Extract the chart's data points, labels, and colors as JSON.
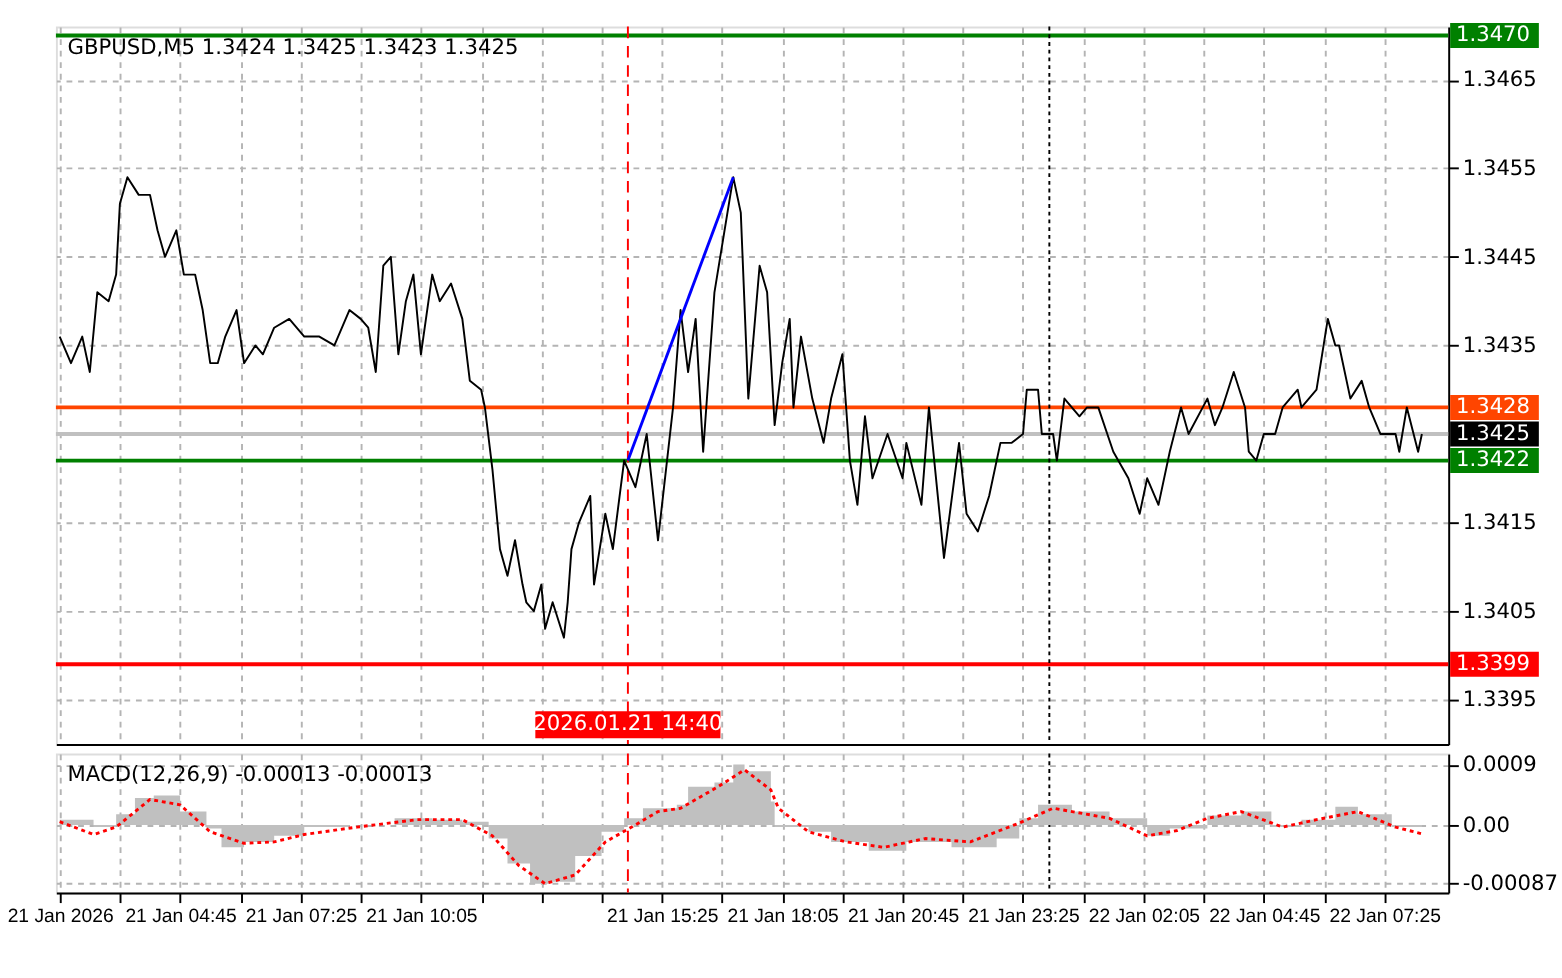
{
  "chart_data": [
    {
      "type": "line",
      "title": "GBPUSD,M5  1.3424 1.3425 1.3423 1.3425",
      "xlim": [
        "2026-01-21T02:00",
        "2026-01-22T08:50"
      ],
      "ylim": [
        1.339,
        1.3471
      ],
      "yticks": [
        1.3395,
        1.3405,
        1.3415,
        1.3435,
        1.3445,
        1.3455,
        1.3465
      ],
      "xticks": [
        {
          "value": "2026-01-21T02:05",
          "label": null
        },
        {
          "value": "2026-01-21T03:25",
          "label": null
        },
        {
          "value": "2026-01-21T04:45",
          "label": null
        },
        {
          "value": "2026-01-21T06:05",
          "label": null
        },
        {
          "value": "2026-01-21T07:25",
          "label": null
        },
        {
          "value": "2026-01-21T08:45",
          "label": null
        },
        {
          "value": "2026-01-21T10:05",
          "label": null
        },
        {
          "value": "2026-01-21T11:25",
          "label": null
        },
        {
          "value": "2026-01-21T12:45",
          "label": null
        },
        {
          "value": "2026-01-21T14:05",
          "label": null
        },
        {
          "value": "2026-01-21T15:25",
          "label": null
        },
        {
          "value": "2026-01-21T16:45",
          "label": null
        },
        {
          "value": "2026-01-21T18:05",
          "label": null
        },
        {
          "value": "2026-01-21T19:25",
          "label": null
        },
        {
          "value": "2026-01-21T20:45",
          "label": null
        },
        {
          "value": "2026-01-21T22:05",
          "label": null
        },
        {
          "value": "2026-01-21T23:25",
          "label": null
        },
        {
          "value": "2026-01-22T00:45",
          "label": null
        },
        {
          "value": "2026-01-22T02:05",
          "label": null
        },
        {
          "value": "2026-01-22T03:25",
          "label": null
        },
        {
          "value": "2026-01-22T04:45",
          "label": null
        },
        {
          "value": "2026-01-22T06:05",
          "label": null
        },
        {
          "value": "2026-01-22T07:25",
          "label": null
        }
      ],
      "tick_labels": "y",
      "grid": true,
      "ref_lines": [
        {
          "axis": "y",
          "value": 1.347,
          "label": "1.3470",
          "color": "#008000"
        },
        {
          "axis": "y",
          "value": 1.3428,
          "label": "1.3428",
          "color": "#ff4500"
        },
        {
          "axis": "y",
          "value": 1.3425,
          "label": "1.3425",
          "color": "#c0c0c0"
        },
        {
          "axis": "y",
          "value": 1.3422,
          "label": "1.3422",
          "color": "#008000"
        },
        {
          "axis": "y",
          "value": 1.3399,
          "label": "1.3399",
          "color": "#ff0000"
        },
        {
          "axis": "x",
          "value": "2026-01-21T14:40",
          "label": "2026.01.21 14:40",
          "color": "#ff0000",
          "line_style": "dashed"
        },
        {
          "axis": "x",
          "value": "2026-01-22T00:00",
          "color": "#000000",
          "line_style": "dotted"
        }
      ],
      "series": [
        {
          "color": "#000000",
          "x": [
            "2026-01-21T02:05",
            "2026-01-21T02:20",
            "2026-01-21T02:35",
            "2026-01-21T02:45",
            "2026-01-21T02:55",
            "2026-01-21T03:10",
            "2026-01-21T03:20",
            "2026-01-21T03:25",
            "2026-01-21T03:35",
            "2026-01-21T03:50",
            "2026-01-21T04:05",
            "2026-01-21T04:15",
            "2026-01-21T04:25",
            "2026-01-21T04:40",
            "2026-01-21T04:50",
            "2026-01-21T05:05",
            "2026-01-21T05:15",
            "2026-01-21T05:25",
            "2026-01-21T05:35",
            "2026-01-21T05:45",
            "2026-01-21T06:00",
            "2026-01-21T06:10",
            "2026-01-21T06:25",
            "2026-01-21T06:35",
            "2026-01-21T06:50",
            "2026-01-21T07:10",
            "2026-01-21T07:30",
            "2026-01-21T07:50",
            "2026-01-21T08:10",
            "2026-01-21T08:30",
            "2026-01-21T08:45",
            "2026-01-21T08:55",
            "2026-01-21T09:05",
            "2026-01-21T09:15",
            "2026-01-21T09:25",
            "2026-01-21T09:35",
            "2026-01-21T09:45",
            "2026-01-21T09:55",
            "2026-01-21T10:05",
            "2026-01-21T10:20",
            "2026-01-21T10:30",
            "2026-01-21T10:45",
            "2026-01-21T11:00",
            "2026-01-21T11:10",
            "2026-01-21T11:25",
            "2026-01-21T11:30",
            "2026-01-21T11:40",
            "2026-01-21T11:50",
            "2026-01-21T12:00",
            "2026-01-21T12:10",
            "2026-01-21T12:20",
            "2026-01-21T12:25",
            "2026-01-21T12:35",
            "2026-01-21T12:45",
            "2026-01-21T12:50",
            "2026-01-21T13:00",
            "2026-01-21T13:15",
            "2026-01-21T13:20",
            "2026-01-21T13:25",
            "2026-01-21T13:35",
            "2026-01-21T13:50",
            "2026-01-21T13:55",
            "2026-01-21T14:10",
            "2026-01-21T14:20",
            "2026-01-21T14:35",
            "2026-01-21T14:50",
            "2026-01-21T15:05",
            "2026-01-21T15:20",
            "2026-01-21T15:40",
            "2026-01-21T15:50",
            "2026-01-21T16:00",
            "2026-01-21T16:10",
            "2026-01-21T16:20",
            "2026-01-21T16:35",
            "2026-01-21T17:00",
            "2026-01-21T17:10",
            "2026-01-21T17:20",
            "2026-01-21T17:35",
            "2026-01-21T17:45",
            "2026-01-21T17:55",
            "2026-01-21T18:05",
            "2026-01-21T18:15",
            "2026-01-21T18:20",
            "2026-01-21T18:30",
            "2026-01-21T18:45",
            "2026-01-21T19:00",
            "2026-01-21T19:10",
            "2026-01-21T19:25",
            "2026-01-21T19:35",
            "2026-01-21T19:45",
            "2026-01-21T19:55",
            "2026-01-21T20:05",
            "2026-01-21T20:25",
            "2026-01-21T20:45",
            "2026-01-21T20:50",
            "2026-01-21T21:10",
            "2026-01-21T21:20",
            "2026-01-21T21:40",
            "2026-01-21T22:00",
            "2026-01-21T22:10",
            "2026-01-21T22:25",
            "2026-01-21T22:40",
            "2026-01-21T22:55",
            "2026-01-21T23:10",
            "2026-01-21T23:25",
            "2026-01-21T23:30",
            "2026-01-21T23:45",
            "2026-01-21T23:50",
            "2026-01-22T00:05",
            "2026-01-22T00:10",
            "2026-01-22T00:20",
            "2026-01-22T00:40",
            "2026-01-22T00:50",
            "2026-01-22T01:05",
            "2026-01-22T01:25",
            "2026-01-22T01:45",
            "2026-01-22T02:00",
            "2026-01-22T02:10",
            "2026-01-22T02:25",
            "2026-01-22T02:40",
            "2026-01-22T02:55",
            "2026-01-22T03:05",
            "2026-01-22T03:30",
            "2026-01-22T03:40",
            "2026-01-22T03:50",
            "2026-01-22T04:05",
            "2026-01-22T04:20",
            "2026-01-22T04:25",
            "2026-01-22T04:35",
            "2026-01-22T04:45",
            "2026-01-22T05:00",
            "2026-01-22T05:10",
            "2026-01-22T05:30",
            "2026-01-22T05:35",
            "2026-01-22T05:55",
            "2026-01-22T06:10",
            "2026-01-22T06:20",
            "2026-01-22T06:25",
            "2026-01-22T06:40",
            "2026-01-22T06:55",
            "2026-01-22T07:05",
            "2026-01-22T07:20",
            "2026-01-22T07:40",
            "2026-01-22T07:45",
            "2026-01-22T07:55",
            "2026-01-22T08:10",
            "2026-01-22T08:15"
          ],
          "values": [
            1.3436,
            1.3433,
            1.3436,
            1.3432,
            1.3441,
            1.344,
            1.3443,
            1.3451,
            1.3454,
            1.3452,
            1.3452,
            1.3448,
            1.3445,
            1.3448,
            1.3443,
            1.3443,
            1.3439,
            1.3433,
            1.3433,
            1.3436,
            1.3439,
            1.3433,
            1.3435,
            1.3434,
            1.3437,
            1.3438,
            1.3436,
            1.3436,
            1.3435,
            1.3439,
            1.3438,
            1.3437,
            1.3432,
            1.3444,
            1.3445,
            1.3434,
            1.344,
            1.3443,
            1.3434,
            1.3443,
            1.344,
            1.3442,
            1.3438,
            1.3431,
            1.343,
            1.3428,
            1.3421,
            1.3412,
            1.3409,
            1.3413,
            1.3408,
            1.3406,
            1.3405,
            1.3408,
            1.3403,
            1.3406,
            1.3402,
            1.3406,
            1.3412,
            1.3415,
            1.3418,
            1.3408,
            1.3416,
            1.3412,
            1.3422,
            1.3419,
            1.3425,
            1.3413,
            1.3428,
            1.3439,
            1.3432,
            1.3438,
            1.3423,
            1.3441,
            1.3454,
            1.345,
            1.3429,
            1.3444,
            1.3441,
            1.3426,
            1.3433,
            1.3438,
            1.3428,
            1.3436,
            1.3429,
            1.3424,
            1.3429,
            1.3434,
            1.3422,
            1.3417,
            1.3427,
            1.342,
            1.3425,
            1.342,
            1.3424,
            1.3417,
            1.3428,
            1.3411,
            1.3424,
            1.3416,
            1.3414,
            1.3418,
            1.3424,
            1.3424,
            1.3425,
            1.343,
            1.343,
            1.3425,
            1.3425,
            1.3422,
            1.3429,
            1.3427,
            1.3428,
            1.3428,
            1.3423,
            1.342,
            1.3416,
            1.342,
            1.3417,
            1.3423,
            1.3428,
            1.3425,
            1.3429,
            1.3426,
            1.3428,
            1.3432,
            1.3428,
            1.3423,
            1.3422,
            1.3425,
            1.3425,
            1.3428,
            1.343,
            1.3428,
            1.343,
            1.3438,
            1.3435,
            1.3435,
            1.3429,
            1.3431,
            1.3428,
            1.3425,
            1.3425,
            1.3423,
            1.3428,
            1.3423,
            1.3425
          ]
        },
        {
          "type": "line",
          "color": "#0000ff",
          "x": [
            "2026-01-21T14:40",
            "2026-01-21T17:00"
          ],
          "values": [
            1.3422,
            1.3454
          ]
        }
      ]
    },
    {
      "type": "area",
      "title": "MACD(12,26,9) -0.00013 -0.00013",
      "xlim": [
        "2026-01-21T02:00",
        "2026-01-22T08:50"
      ],
      "ylim": [
        -0.001,
        0.00106
      ],
      "yticks": [
        -0.00087,
        {
          "value": 0,
          "label": "0.00"
        },
        0.0009
      ],
      "xticks": [
        {
          "value": "2026-01-21T02:05",
          "label": "21 Jan 2026"
        },
        {
          "value": "2026-01-21T03:25",
          "label": null
        },
        {
          "value": "2026-01-21T04:45",
          "label": "21 Jan 04:45"
        },
        {
          "value": "2026-01-21T06:05",
          "label": null
        },
        {
          "value": "2026-01-21T07:25",
          "label": "21 Jan 07:25"
        },
        {
          "value": "2026-01-21T08:45",
          "label": null
        },
        {
          "value": "2026-01-21T10:05",
          "label": "21 Jan 10:05"
        },
        {
          "value": "2026-01-21T11:25",
          "label": null
        },
        {
          "value": "2026-01-21T12:45",
          "label": null
        },
        {
          "value": "2026-01-21T14:05",
          "label": null
        },
        {
          "value": "2026-01-21T15:25",
          "label": "21 Jan 15:25"
        },
        {
          "value": "2026-01-21T16:45",
          "label": null
        },
        {
          "value": "2026-01-21T18:05",
          "label": "21 Jan 18:05"
        },
        {
          "value": "2026-01-21T19:25",
          "label": null
        },
        {
          "value": "2026-01-21T20:45",
          "label": "21 Jan 20:45"
        },
        {
          "value": "2026-01-21T22:05",
          "label": null
        },
        {
          "value": "2026-01-21T23:25",
          "label": "21 Jan 23:25"
        },
        {
          "value": "2026-01-22T00:45",
          "label": null
        },
        {
          "value": "2026-01-22T02:05",
          "label": "22 Jan 02:05"
        },
        {
          "value": "2026-01-22T03:25",
          "label": null
        },
        {
          "value": "2026-01-22T04:45",
          "label": "22 Jan 04:45"
        },
        {
          "value": "2026-01-22T06:05",
          "label": null
        },
        {
          "value": "2026-01-22T07:25",
          "label": "22 Jan 07:25"
        }
      ],
      "grid": true,
      "ref_lines": [
        {
          "axis": "x",
          "value": "2026-01-21T14:40",
          "color": "#ff0000",
          "line_style": "dashed"
        },
        {
          "axis": "x",
          "value": "2026-01-22T00:00",
          "color": "#000000",
          "line_style": "dotted"
        }
      ],
      "series": [
        {
          "type": "area",
          "color": "#c0c0c0",
          "x": [
            "2026-01-21T02:05",
            "2026-01-21T02:50",
            "2026-01-21T03:20",
            "2026-01-21T03:45",
            "2026-01-21T04:10",
            "2026-01-21T04:45",
            "2026-01-21T05:20",
            "2026-01-21T05:40",
            "2026-01-21T06:10",
            "2026-01-21T06:50",
            "2026-01-21T07:30",
            "2026-01-21T08:30",
            "2026-01-21T09:30",
            "2026-01-21T10:20",
            "2026-01-21T11:00",
            "2026-01-21T11:35",
            "2026-01-21T12:00",
            "2026-01-21T12:30",
            "2026-01-21T12:55",
            "2026-01-21T13:30",
            "2026-01-21T14:05",
            "2026-01-21T14:35",
            "2026-01-21T15:00",
            "2026-01-21T15:45",
            "2026-01-21T16:00",
            "2026-01-21T16:35",
            "2026-01-21T17:00",
            "2026-01-21T17:15",
            "2026-01-21T17:50",
            "2026-01-21T17:55",
            "2026-01-21T18:40",
            "2026-01-21T19:10",
            "2026-01-21T20:00",
            "2026-01-21T20:50",
            "2026-01-21T21:50",
            "2026-01-21T22:50",
            "2026-01-21T23:20",
            "2026-01-21T23:45",
            "2026-01-22T00:30",
            "2026-01-22T01:20",
            "2026-01-22T02:10",
            "2026-01-22T02:40",
            "2026-01-22T03:30",
            "2026-01-22T04:15",
            "2026-01-22T04:55",
            "2026-01-22T05:35",
            "2026-01-22T06:20",
            "2026-01-22T06:50",
            "2026-01-22T07:35",
            "2026-01-22T08:15"
          ],
          "values": [
            8e-05,
            -3e-05,
            0.00016,
            0.0004,
            0.00044,
            0.0002,
            -5e-05,
            -0.00033,
            -0.00025,
            -0.00016,
            -3e-05,
            0,
            0.0001,
            8e-05,
            5e-05,
            -0.0002,
            -0.00057,
            -0.00087,
            -0.00084,
            -0.00046,
            -0.0001,
            0.0001,
            0.00025,
            0.0003,
            0.00057,
            0.00063,
            0.0009,
            0.0008,
            0.00035,
            -3e-05,
            -0.0001,
            -0.00025,
            -0.00038,
            -0.00025,
            -0.00033,
            -0.0002,
            0.0001,
            0.0003,
            0.0002,
            0.0001,
            -0.00016,
            -5e-05,
            0.00014,
            0.0002,
            -3e-05,
            8e-05,
            0.00027,
            0.00016,
            -3e-05,
            -0.00013
          ]
        },
        {
          "type": "line",
          "color": "#ff0000",
          "line_style": "dotted",
          "x": [
            "2026-01-21T02:05",
            "2026-01-21T02:50",
            "2026-01-21T03:20",
            "2026-01-21T04:05",
            "2026-01-21T04:45",
            "2026-01-21T05:25",
            "2026-01-21T06:10",
            "2026-01-21T06:50",
            "2026-01-21T07:30",
            "2026-01-21T08:40",
            "2026-01-21T10:00",
            "2026-01-21T11:00",
            "2026-01-21T11:40",
            "2026-01-21T12:15",
            "2026-01-21T12:50",
            "2026-01-21T13:30",
            "2026-01-21T14:10",
            "2026-01-21T14:45",
            "2026-01-21T15:20",
            "2026-01-21T15:50",
            "2026-01-21T16:40",
            "2026-01-21T17:15",
            "2026-01-21T17:50",
            "2026-01-21T18:00",
            "2026-01-21T18:40",
            "2026-01-21T19:30",
            "2026-01-21T20:20",
            "2026-01-21T21:15",
            "2026-01-21T22:15",
            "2026-01-21T23:20",
            "2026-01-22T00:05",
            "2026-01-22T01:20",
            "2026-01-22T02:10",
            "2026-01-22T02:50",
            "2026-01-22T03:30",
            "2026-01-22T04:15",
            "2026-01-22T05:10",
            "2026-01-22T05:55",
            "2026-01-22T06:50",
            "2026-01-22T07:40",
            "2026-01-22T08:15"
          ],
          "values": [
            5e-05,
            -0.00014,
            -3e-05,
            0.00038,
            0.0003,
            -0.0001,
            -0.00027,
            -0.00025,
            -0.00014,
            -3e-05,
            8e-05,
            8e-05,
            -0.00016,
            -0.0006,
            -0.00087,
            -0.00074,
            -0.00025,
            -3e-05,
            0.0002,
            0.00025,
            0.00057,
            0.00082,
            0.00052,
            0.00025,
            -0.0001,
            -0.00025,
            -0.00033,
            -0.0002,
            -0.00025,
            3e-05,
            0.00025,
            0.0001,
            -0.00016,
            -8e-05,
            0.0001,
            0.0002,
            -3e-05,
            8e-05,
            0.0002,
            -3e-05,
            -0.00013
          ]
        }
      ]
    }
  ]
}
